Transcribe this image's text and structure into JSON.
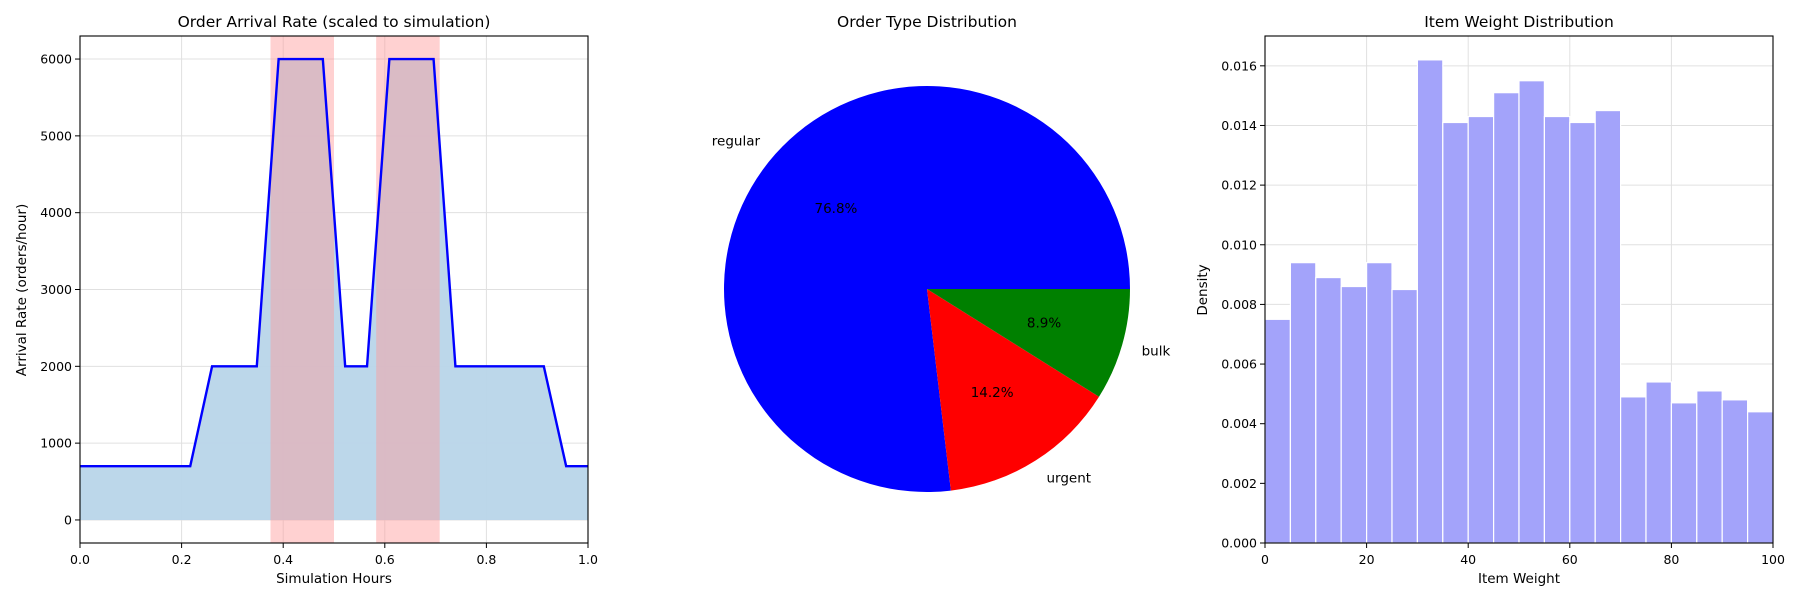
{
  "colors": {
    "arrival_line": "#0000ff",
    "arrival_fill": "#b8d5e9",
    "peak_shade": "#ff9999",
    "pie_regular": "#0000ff",
    "pie_urgent": "#ff0000",
    "pie_bulk": "#008000",
    "hist_bar": "#a3a3fa",
    "grid": "#e0e0e0"
  },
  "chart_data": [
    {
      "type": "line",
      "title": "Order Arrival Rate (scaled to simulation)",
      "xlabel": "Simulation Hours",
      "ylabel": "Arrival Rate (orders/hour)",
      "xlim": [
        0,
        1
      ],
      "ylim": [
        -300,
        6300
      ],
      "xticks": [
        "0.0",
        "0.2",
        "0.4",
        "0.6",
        "0.8",
        "1.0"
      ],
      "xtick_values": [
        0,
        0.2,
        0.4,
        0.6,
        0.8,
        1.0
      ],
      "yticks": [
        "0",
        "1000",
        "2000",
        "3000",
        "4000",
        "5000",
        "6000"
      ],
      "ytick_values": [
        0,
        1000,
        2000,
        3000,
        4000,
        5000,
        6000
      ],
      "grid": true,
      "fill_under": true,
      "x": [
        0,
        0.217,
        0.26,
        0.348,
        0.391,
        0.478,
        0.522,
        0.565,
        0.609,
        0.696,
        0.739,
        0.913,
        0.957,
        1.0
      ],
      "y": [
        700,
        700,
        2000,
        2000,
        6000,
        6000,
        2000,
        2000,
        6000,
        6000,
        2000,
        2000,
        700,
        700
      ],
      "shaded_regions": [
        [
          0.375,
          0.5
        ],
        [
          0.583,
          0.708
        ]
      ]
    },
    {
      "type": "pie",
      "title": "Order Type Distribution",
      "slices": [
        {
          "label": "regular",
          "value": 76.8,
          "pct": "76.8%"
        },
        {
          "label": "urgent",
          "value": 14.2,
          "pct": "14.2%"
        },
        {
          "label": "bulk",
          "value": 8.9,
          "pct": "8.9%"
        }
      ]
    },
    {
      "type": "bar",
      "subtype": "histogram",
      "title": "Item Weight Distribution",
      "xlabel": "Item Weight",
      "ylabel": "Density",
      "xlim": [
        0,
        100
      ],
      "ylim": [
        0,
        0.017
      ],
      "xticks": [
        "0",
        "20",
        "40",
        "60",
        "80",
        "100"
      ],
      "xtick_values": [
        0,
        20,
        40,
        60,
        80,
        100
      ],
      "yticks": [
        "0.000",
        "0.002",
        "0.004",
        "0.006",
        "0.008",
        "0.010",
        "0.012",
        "0.014",
        "0.016"
      ],
      "ytick_values": [
        0,
        0.002,
        0.004,
        0.006,
        0.008,
        0.01,
        0.012,
        0.014,
        0.016
      ],
      "grid": true,
      "bin_width": 5,
      "bin_starts": [
        0,
        5,
        10,
        15,
        20,
        25,
        30,
        35,
        40,
        45,
        50,
        55,
        60,
        65,
        70,
        75,
        80,
        85,
        90,
        95
      ],
      "values": [
        0.0075,
        0.0094,
        0.0089,
        0.0086,
        0.0094,
        0.0085,
        0.0162,
        0.0141,
        0.0143,
        0.0151,
        0.0155,
        0.0143,
        0.0141,
        0.0145,
        0.0049,
        0.0054,
        0.0047,
        0.0051,
        0.0048,
        0.0044
      ]
    }
  ]
}
